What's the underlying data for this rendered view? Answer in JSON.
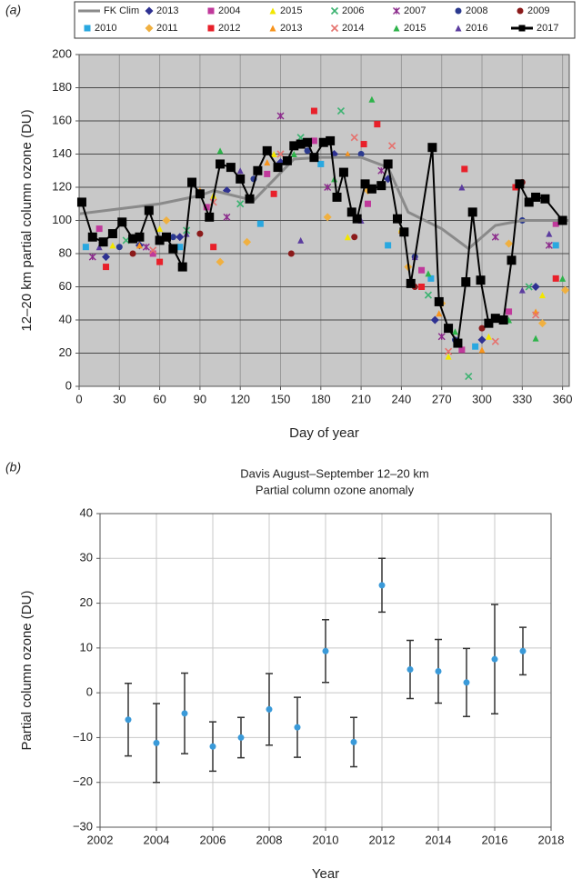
{
  "chart_data": [
    {
      "type": "line",
      "panel_label": "(a)",
      "x_label": "Day of year",
      "y_label": "12–20 km partial column ozone (DU)",
      "xlim": [
        0,
        365
      ],
      "xticks": [
        0,
        30,
        60,
        90,
        120,
        150,
        180,
        210,
        240,
        270,
        300,
        330,
        360
      ],
      "ylim": [
        0,
        200
      ],
      "yticks": [
        0,
        20,
        40,
        60,
        80,
        100,
        120,
        140,
        160,
        180,
        200
      ],
      "grid": true,
      "background": "#c8c8c8",
      "legend": "top",
      "series": [
        {
          "name": "FK Clim",
          "color": "#8a8a8a",
          "line": true,
          "x": [
            0,
            30,
            60,
            90,
            100,
            130,
            160,
            180,
            210,
            230,
            245,
            270,
            290,
            310,
            330,
            365
          ],
          "values": [
            104,
            107,
            110,
            115,
            118,
            112,
            137,
            138,
            138,
            132,
            105,
            95,
            83,
            97,
            100,
            100
          ]
        },
        {
          "name": "2013",
          "color": "#2e3192",
          "marker": "diamond",
          "x": [
            20,
            45,
            75,
            110,
            150,
            190,
            230,
            265,
            300,
            340
          ],
          "values": [
            78,
            85,
            90,
            118,
            135,
            140,
            125,
            40,
            28,
            60
          ]
        },
        {
          "name": "2004",
          "color": "#c0399b",
          "marker": "square",
          "x": [
            15,
            55,
            95,
            140,
            175,
            215,
            255,
            285,
            320,
            355
          ],
          "values": [
            95,
            80,
            108,
            128,
            148,
            110,
            70,
            22,
            45,
            98
          ]
        },
        {
          "name": "2015",
          "color": "#f2e600",
          "marker": "triangle",
          "x": [
            25,
            60,
            100,
            145,
            200,
            240,
            275,
            305,
            345
          ],
          "values": [
            85,
            95,
            115,
            140,
            90,
            95,
            18,
            30,
            55
          ]
        },
        {
          "name": "2006",
          "color": "#3cb371",
          "marker": "x",
          "x": [
            35,
            80,
            120,
            165,
            195,
            260,
            290,
            335
          ],
          "values": [
            88,
            94,
            110,
            150,
            166,
            55,
            6,
            60
          ]
        },
        {
          "name": "2007",
          "color": "#8b2a8b",
          "marker": "star",
          "x": [
            10,
            50,
            110,
            150,
            185,
            225,
            270,
            310,
            350
          ],
          "values": [
            78,
            84,
            102,
            163,
            120,
            130,
            30,
            90,
            85
          ]
        },
        {
          "name": "2008",
          "color": "#2b3a8f",
          "marker": "circle",
          "x": [
            30,
            70,
            130,
            170,
            210,
            250,
            280,
            330
          ],
          "values": [
            84,
            90,
            125,
            142,
            140,
            78,
            28,
            100
          ]
        },
        {
          "name": "2009",
          "color": "#8b1a1a",
          "marker": "circle",
          "x": [
            40,
            90,
            158,
            205,
            250,
            300,
            330
          ],
          "values": [
            80,
            92,
            80,
            90,
            60,
            35,
            123
          ]
        },
        {
          "name": "2010",
          "color": "#29a8e0",
          "marker": "square",
          "x": [
            5,
            75,
            135,
            180,
            230,
            262,
            295,
            355
          ],
          "values": [
            84,
            84,
            98,
            134,
            85,
            65,
            24,
            85
          ]
        },
        {
          "name": "2011",
          "color": "#f0b040",
          "marker": "diamond",
          "x": [
            65,
            105,
            125,
            185,
            215,
            245,
            270,
            320,
            345,
            362
          ],
          "values": [
            100,
            75,
            87,
            102,
            118,
            72,
            50,
            86,
            38,
            58
          ]
        },
        {
          "name": "2012",
          "color": "#e8202a",
          "marker": "square",
          "x": [
            20,
            60,
            100,
            145,
            175,
            212,
            222,
            255,
            287,
            325,
            355
          ],
          "values": [
            72,
            75,
            84,
            116,
            166,
            146,
            158,
            60,
            131,
            120,
            65
          ]
        },
        {
          "name": "2013",
          "color": "#f7941d",
          "marker": "triangle",
          "x": [
            45,
            90,
            140,
            200,
            240,
            268,
            300,
            340
          ],
          "values": [
            85,
            118,
            135,
            140,
            94,
            44,
            22,
            45
          ]
        },
        {
          "name": "2014",
          "color": "#e5736f",
          "marker": "x",
          "x": [
            55,
            100,
            150,
            205,
            233,
            275,
            310,
            340
          ],
          "values": [
            82,
            111,
            140,
            150,
            145,
            21,
            27,
            43
          ]
        },
        {
          "name": "2015",
          "color": "#2db34a",
          "marker": "triangle",
          "x": [
            105,
            160,
            190,
            218,
            260,
            280,
            320,
            340,
            360
          ],
          "values": [
            142,
            140,
            125,
            173,
            68,
            33,
            40,
            29,
            65
          ]
        },
        {
          "name": "2016",
          "color": "#5b3c9f",
          "marker": "triangle",
          "x": [
            15,
            80,
            120,
            165,
            210,
            250,
            285,
            330,
            350
          ],
          "values": [
            84,
            92,
            130,
            88,
            100,
            78,
            120,
            58,
            92
          ]
        },
        {
          "name": "2017",
          "color": "#000000",
          "line": true,
          "marker": "square",
          "x": [
            2,
            10,
            18,
            25,
            32,
            40,
            45,
            52,
            60,
            65,
            70,
            77,
            84,
            90,
            97,
            105,
            113,
            120,
            127,
            133,
            140,
            148,
            155,
            160,
            165,
            170,
            175,
            182,
            187,
            192,
            197,
            203,
            207,
            213,
            218,
            225,
            230,
            237,
            242,
            247,
            263,
            268,
            275,
            282,
            288,
            293,
            299,
            305,
            310,
            316,
            322,
            328,
            335,
            340,
            347,
            360
          ],
          "values": [
            111,
            90,
            87,
            92,
            99,
            89,
            90,
            106,
            88,
            90,
            83,
            72,
            123,
            116,
            102,
            134,
            132,
            125,
            113,
            130,
            142,
            132,
            136,
            145,
            146,
            147,
            138,
            147,
            148,
            114,
            129,
            105,
            101,
            122,
            119,
            121,
            134,
            101,
            93,
            62,
            144,
            51,
            35,
            26,
            63,
            105,
            64,
            38,
            41,
            40,
            76,
            122,
            111,
            114,
            113,
            100
          ]
        }
      ]
    },
    {
      "type": "errorbar",
      "panel_label": "(b)",
      "title": "Davis August–September 12–20 km",
      "subtitle": "Partial column ozone anomaly",
      "x_label": "Year",
      "y_label": "Partial column ozone (DU)",
      "xlim": [
        2002,
        2018
      ],
      "xticks": [
        2002,
        2004,
        2006,
        2008,
        2010,
        2012,
        2014,
        2016,
        2018
      ],
      "ylim": [
        -30,
        40
      ],
      "yticks": [
        {
          "value": -30,
          "label": "−30"
        },
        {
          "value": -20,
          "label": "−20"
        },
        {
          "value": -10,
          "label": "−10"
        },
        0,
        10,
        20,
        30,
        40
      ],
      "grid": true,
      "color": "#3a9ad9",
      "error_color": "#333333",
      "x": [
        2003,
        2004,
        2005,
        2006,
        2007,
        2008,
        2009,
        2010,
        2011,
        2012,
        2013,
        2014,
        2015,
        2016,
        2017
      ],
      "values": [
        -6,
        -11.2,
        -4.6,
        -12,
        -10,
        -3.7,
        -7.7,
        9.3,
        -11,
        24,
        5.2,
        4.8,
        2.3,
        7.5,
        9.3
      ],
      "errors": [
        8.1,
        8.8,
        9,
        5.5,
        4.5,
        8,
        6.7,
        7,
        5.5,
        6,
        6.5,
        7.1,
        7.6,
        12.2,
        5.3
      ]
    }
  ]
}
